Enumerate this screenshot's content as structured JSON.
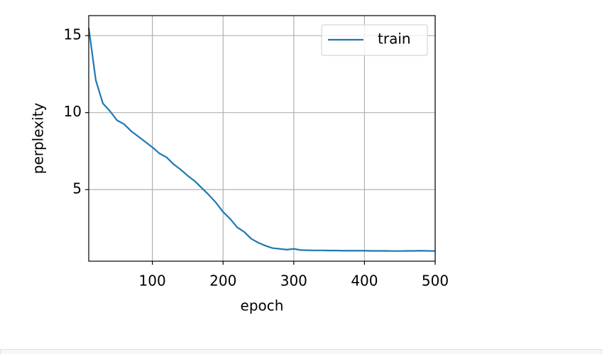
{
  "chart_data": {
    "type": "line",
    "x_label": "epoch",
    "y_label": "perplexity",
    "x": [
      10,
      20,
      30,
      40,
      50,
      60,
      70,
      80,
      90,
      100,
      110,
      120,
      130,
      140,
      150,
      160,
      170,
      180,
      190,
      200,
      210,
      220,
      230,
      240,
      250,
      260,
      270,
      280,
      290,
      300,
      310,
      320,
      330,
      340,
      350,
      360,
      370,
      380,
      390,
      400,
      410,
      420,
      430,
      440,
      450,
      460,
      470,
      480,
      490,
      500
    ],
    "series": [
      {
        "name": "train",
        "color": "#1f77b4",
        "values": [
          15.5,
          12.1,
          10.6,
          10.1,
          9.5,
          9.25,
          8.8,
          8.45,
          8.1,
          7.75,
          7.35,
          7.1,
          6.65,
          6.3,
          5.9,
          5.55,
          5.1,
          4.65,
          4.15,
          3.55,
          3.1,
          2.55,
          2.25,
          1.8,
          1.55,
          1.35,
          1.2,
          1.15,
          1.1,
          1.15,
          1.07,
          1.06,
          1.05,
          1.05,
          1.04,
          1.04,
          1.03,
          1.03,
          1.03,
          1.03,
          1.02,
          1.02,
          1.02,
          1.01,
          1.01,
          1.02,
          1.02,
          1.03,
          1.02,
          1.01
        ]
      }
    ],
    "xlim": [
      10,
      500
    ],
    "ylim": [
      0.35,
      16.3
    ],
    "xticks": [
      100,
      200,
      300,
      400,
      500
    ],
    "yticks": [
      5,
      10,
      15
    ],
    "grid": true,
    "legend": "upper right"
  }
}
